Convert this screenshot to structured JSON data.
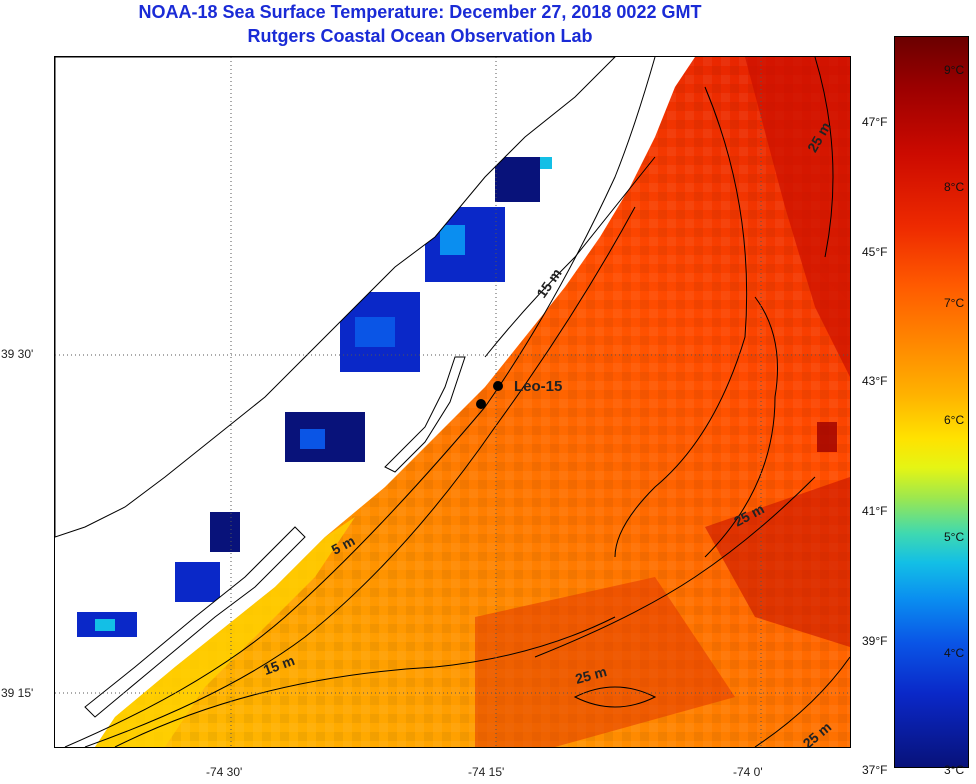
{
  "title": {
    "line1": "NOAA-18 Sea Surface Temperature:  December 27, 2018 0022 GMT",
    "line2": "Rutgers Coastal Ocean Observation Lab"
  },
  "axes": {
    "lon_labels": [
      "-74 30'",
      "-74 15'",
      "-74 0'"
    ],
    "lat_labels": [
      "39 30'",
      "39 15'"
    ]
  },
  "station": {
    "name": "Leo-15"
  },
  "contours": [
    "15 m",
    "5 m",
    "15 m",
    "25 m",
    "25 m",
    "25 m",
    "25 m"
  ],
  "colorbar": {
    "celsius_labels": [
      "9°C",
      "8°C",
      "7°C",
      "6°C",
      "5°C",
      "4°C",
      "3°C"
    ],
    "fahrenheit_labels": [
      "47°F",
      "45°F",
      "43°F",
      "41°F",
      "39°F",
      "37°F"
    ]
  },
  "colors": {
    "title": "#1a2bd6",
    "land": "#ffffff",
    "coastline": "#000000"
  }
}
